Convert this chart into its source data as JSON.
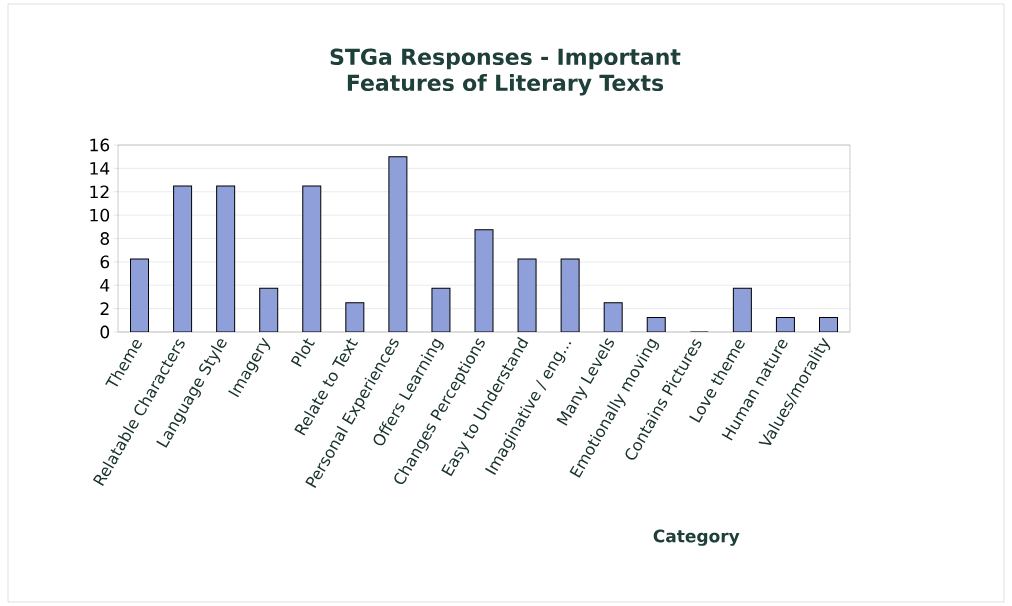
{
  "chart_data": {
    "type": "bar",
    "title": "STGa Responses - Important Features of Literary Texts",
    "xlabel": "Category",
    "categories": [
      "Theme",
      "Relatable Characters",
      "Language Style",
      "Imagery",
      "Plot",
      "Relate to Text",
      "Personal Experiences",
      "Offers Learning",
      "Changes Perceptions",
      "Easy to Understand",
      "Imaginative / eng...",
      "Many Levels",
      "Emotionally moving",
      "Contains Pictures",
      "Love theme",
      "Human nature",
      "Values/morality"
    ],
    "values": [
      6.25,
      12.5,
      12.5,
      3.75,
      12.5,
      2.5,
      15,
      3.75,
      8.75,
      6.25,
      6.25,
      2.5,
      1.25,
      0,
      3.75,
      1.25,
      1.25
    ],
    "color": "#8e9fd9",
    "ylim": [
      0,
      16
    ],
    "yticks": [
      0,
      2,
      4,
      6,
      8,
      10,
      12,
      14,
      16
    ],
    "grid": "y"
  }
}
